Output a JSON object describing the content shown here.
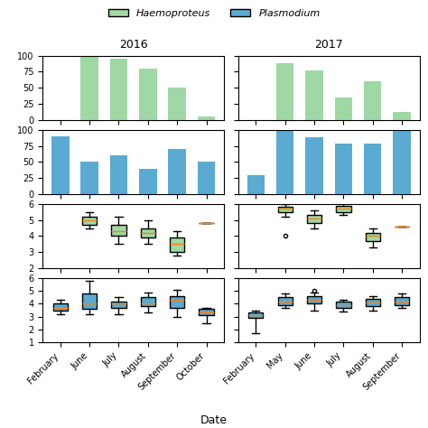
{
  "chart_data": [
    {
      "type": "bar",
      "title": "2016",
      "legend": "upper center",
      "categories": [
        "February",
        "June",
        "July",
        "August",
        "September",
        "October"
      ],
      "series": [
        {
          "name": "Haemoproteus",
          "color": "#9fd8a4",
          "values": [
            0,
            100,
            95,
            80,
            50,
            5
          ]
        }
      ],
      "ylim": [
        0,
        100
      ],
      "yticks": [
        0,
        25,
        50,
        75,
        100
      ],
      "tick_labels": "y"
    },
    {
      "type": "bar",
      "title": "2017",
      "categories": [
        "February",
        "May",
        "June",
        "July",
        "August",
        "September"
      ],
      "series": [
        {
          "name": "Haemoproteus",
          "color": "#9fd8a4",
          "values": [
            0,
            88,
            77,
            35,
            60,
            12
          ]
        }
      ],
      "ylim": [
        0,
        100
      ],
      "yticks": [
        0,
        25,
        50,
        75,
        100
      ],
      "tick_labels": false
    },
    {
      "type": "bar",
      "categories": [
        "February",
        "June",
        "July",
        "August",
        "September",
        "October"
      ],
      "series": [
        {
          "name": "Plasmodium",
          "color": "#5aaad2",
          "values": [
            90,
            50,
            60,
            40,
            70,
            50
          ]
        }
      ],
      "ylim": [
        0,
        100
      ],
      "yticks": [
        0,
        25,
        50,
        75,
        100
      ],
      "tick_labels": "y"
    },
    {
      "type": "bar",
      "categories": [
        "February",
        "May",
        "June",
        "July",
        "August",
        "September"
      ],
      "series": [
        {
          "name": "Plasmodium",
          "color": "#5aaad2",
          "values": [
            30,
            100,
            88,
            78,
            78,
            100
          ]
        }
      ],
      "ylim": [
        0,
        100
      ],
      "yticks": [
        0,
        25,
        50,
        75,
        100
      ],
      "tick_labels": false
    },
    {
      "type": "box",
      "categories": [
        "February",
        "June",
        "July",
        "August",
        "September",
        "October"
      ],
      "series": [
        {
          "name": "Haemoproteus",
          "color": "#9fd8a4",
          "median": [
            null,
            5.0,
            4.3,
            4.2,
            3.5,
            null
          ],
          "q1": [
            null,
            4.7,
            4.0,
            3.9,
            3.0,
            null
          ],
          "q3": [
            null,
            5.2,
            4.7,
            4.5,
            3.9,
            null
          ],
          "whislo": [
            null,
            4.5,
            3.5,
            3.5,
            2.8,
            null
          ],
          "whishi": [
            null,
            5.5,
            5.2,
            5.0,
            4.3,
            null
          ],
          "single": [
            null,
            null,
            null,
            null,
            null,
            4.8
          ],
          "fliers": [
            null,
            null,
            null,
            null,
            null,
            null
          ]
        }
      ],
      "ylim": [
        2,
        6
      ],
      "yticks": [
        2,
        3,
        4,
        5,
        6
      ],
      "tick_labels": "y"
    },
    {
      "type": "box",
      "categories": [
        "February",
        "May",
        "June",
        "July",
        "August",
        "September"
      ],
      "series": [
        {
          "name": "Haemoproteus",
          "color": "#9fd8a4",
          "median": [
            null,
            5.7,
            5.1,
            5.7,
            4.0,
            null
          ],
          "q1": [
            null,
            5.5,
            4.8,
            5.5,
            3.7,
            null
          ],
          "q3": [
            null,
            5.8,
            5.3,
            5.9,
            4.2,
            null
          ],
          "whislo": [
            null,
            5.2,
            4.5,
            5.3,
            3.3,
            null
          ],
          "whishi": [
            null,
            6.0,
            5.6,
            6.1,
            4.5,
            null
          ],
          "single": [
            null,
            null,
            null,
            null,
            null,
            4.6
          ],
          "fliers": [
            null,
            4.0,
            null,
            null,
            null,
            null
          ]
        }
      ],
      "ylim": [
        2,
        6
      ],
      "yticks": [
        2,
        3,
        4,
        5,
        6
      ],
      "tick_labels": false
    },
    {
      "type": "box",
      "xlabel": "Date",
      "categories": [
        "February",
        "June",
        "July",
        "August",
        "September",
        "October"
      ],
      "series": [
        {
          "name": "Plasmodium",
          "color": "#5aaad2",
          "median": [
            3.7,
            4.0,
            4.0,
            4.0,
            4.3,
            3.35
          ],
          "q1": [
            3.5,
            3.6,
            3.7,
            3.8,
            3.7,
            3.1
          ],
          "q3": [
            4.0,
            4.8,
            4.2,
            4.5,
            4.6,
            3.6
          ],
          "whislo": [
            3.2,
            3.2,
            3.2,
            3.3,
            3.0,
            2.5
          ],
          "whishi": [
            4.3,
            5.8,
            4.5,
            4.9,
            5.1,
            3.7
          ],
          "single": [
            null,
            null,
            null,
            null,
            null,
            null
          ],
          "fliers": [
            null,
            null,
            null,
            null,
            null,
            null
          ]
        }
      ],
      "ylim": [
        1,
        6
      ],
      "yticks": [
        1,
        2,
        3,
        4,
        5,
        6
      ]
    },
    {
      "type": "box",
      "categories": [
        "February",
        "May",
        "June",
        "July",
        "August",
        "September"
      ],
      "series": [
        {
          "name": "Plasmodium",
          "color": "#5aaad2",
          "median": [
            3.1,
            4.2,
            4.3,
            3.9,
            4.1,
            4.2
          ],
          "q1": [
            2.9,
            3.9,
            4.0,
            3.7,
            3.8,
            3.9
          ],
          "q3": [
            3.3,
            4.5,
            4.6,
            4.2,
            4.4,
            4.5
          ],
          "whislo": [
            1.7,
            3.7,
            3.5,
            3.4,
            3.5,
            3.7
          ],
          "whishi": [
            3.5,
            4.8,
            4.9,
            4.3,
            4.6,
            4.8
          ],
          "single": [
            null,
            null,
            null,
            null,
            null,
            null
          ],
          "fliers": [
            null,
            null,
            5.0,
            null,
            null,
            null
          ]
        }
      ],
      "ylim": [
        1,
        6
      ],
      "yticks": [
        1,
        2,
        3,
        4,
        5,
        6
      ],
      "tick_labels": "x"
    }
  ]
}
